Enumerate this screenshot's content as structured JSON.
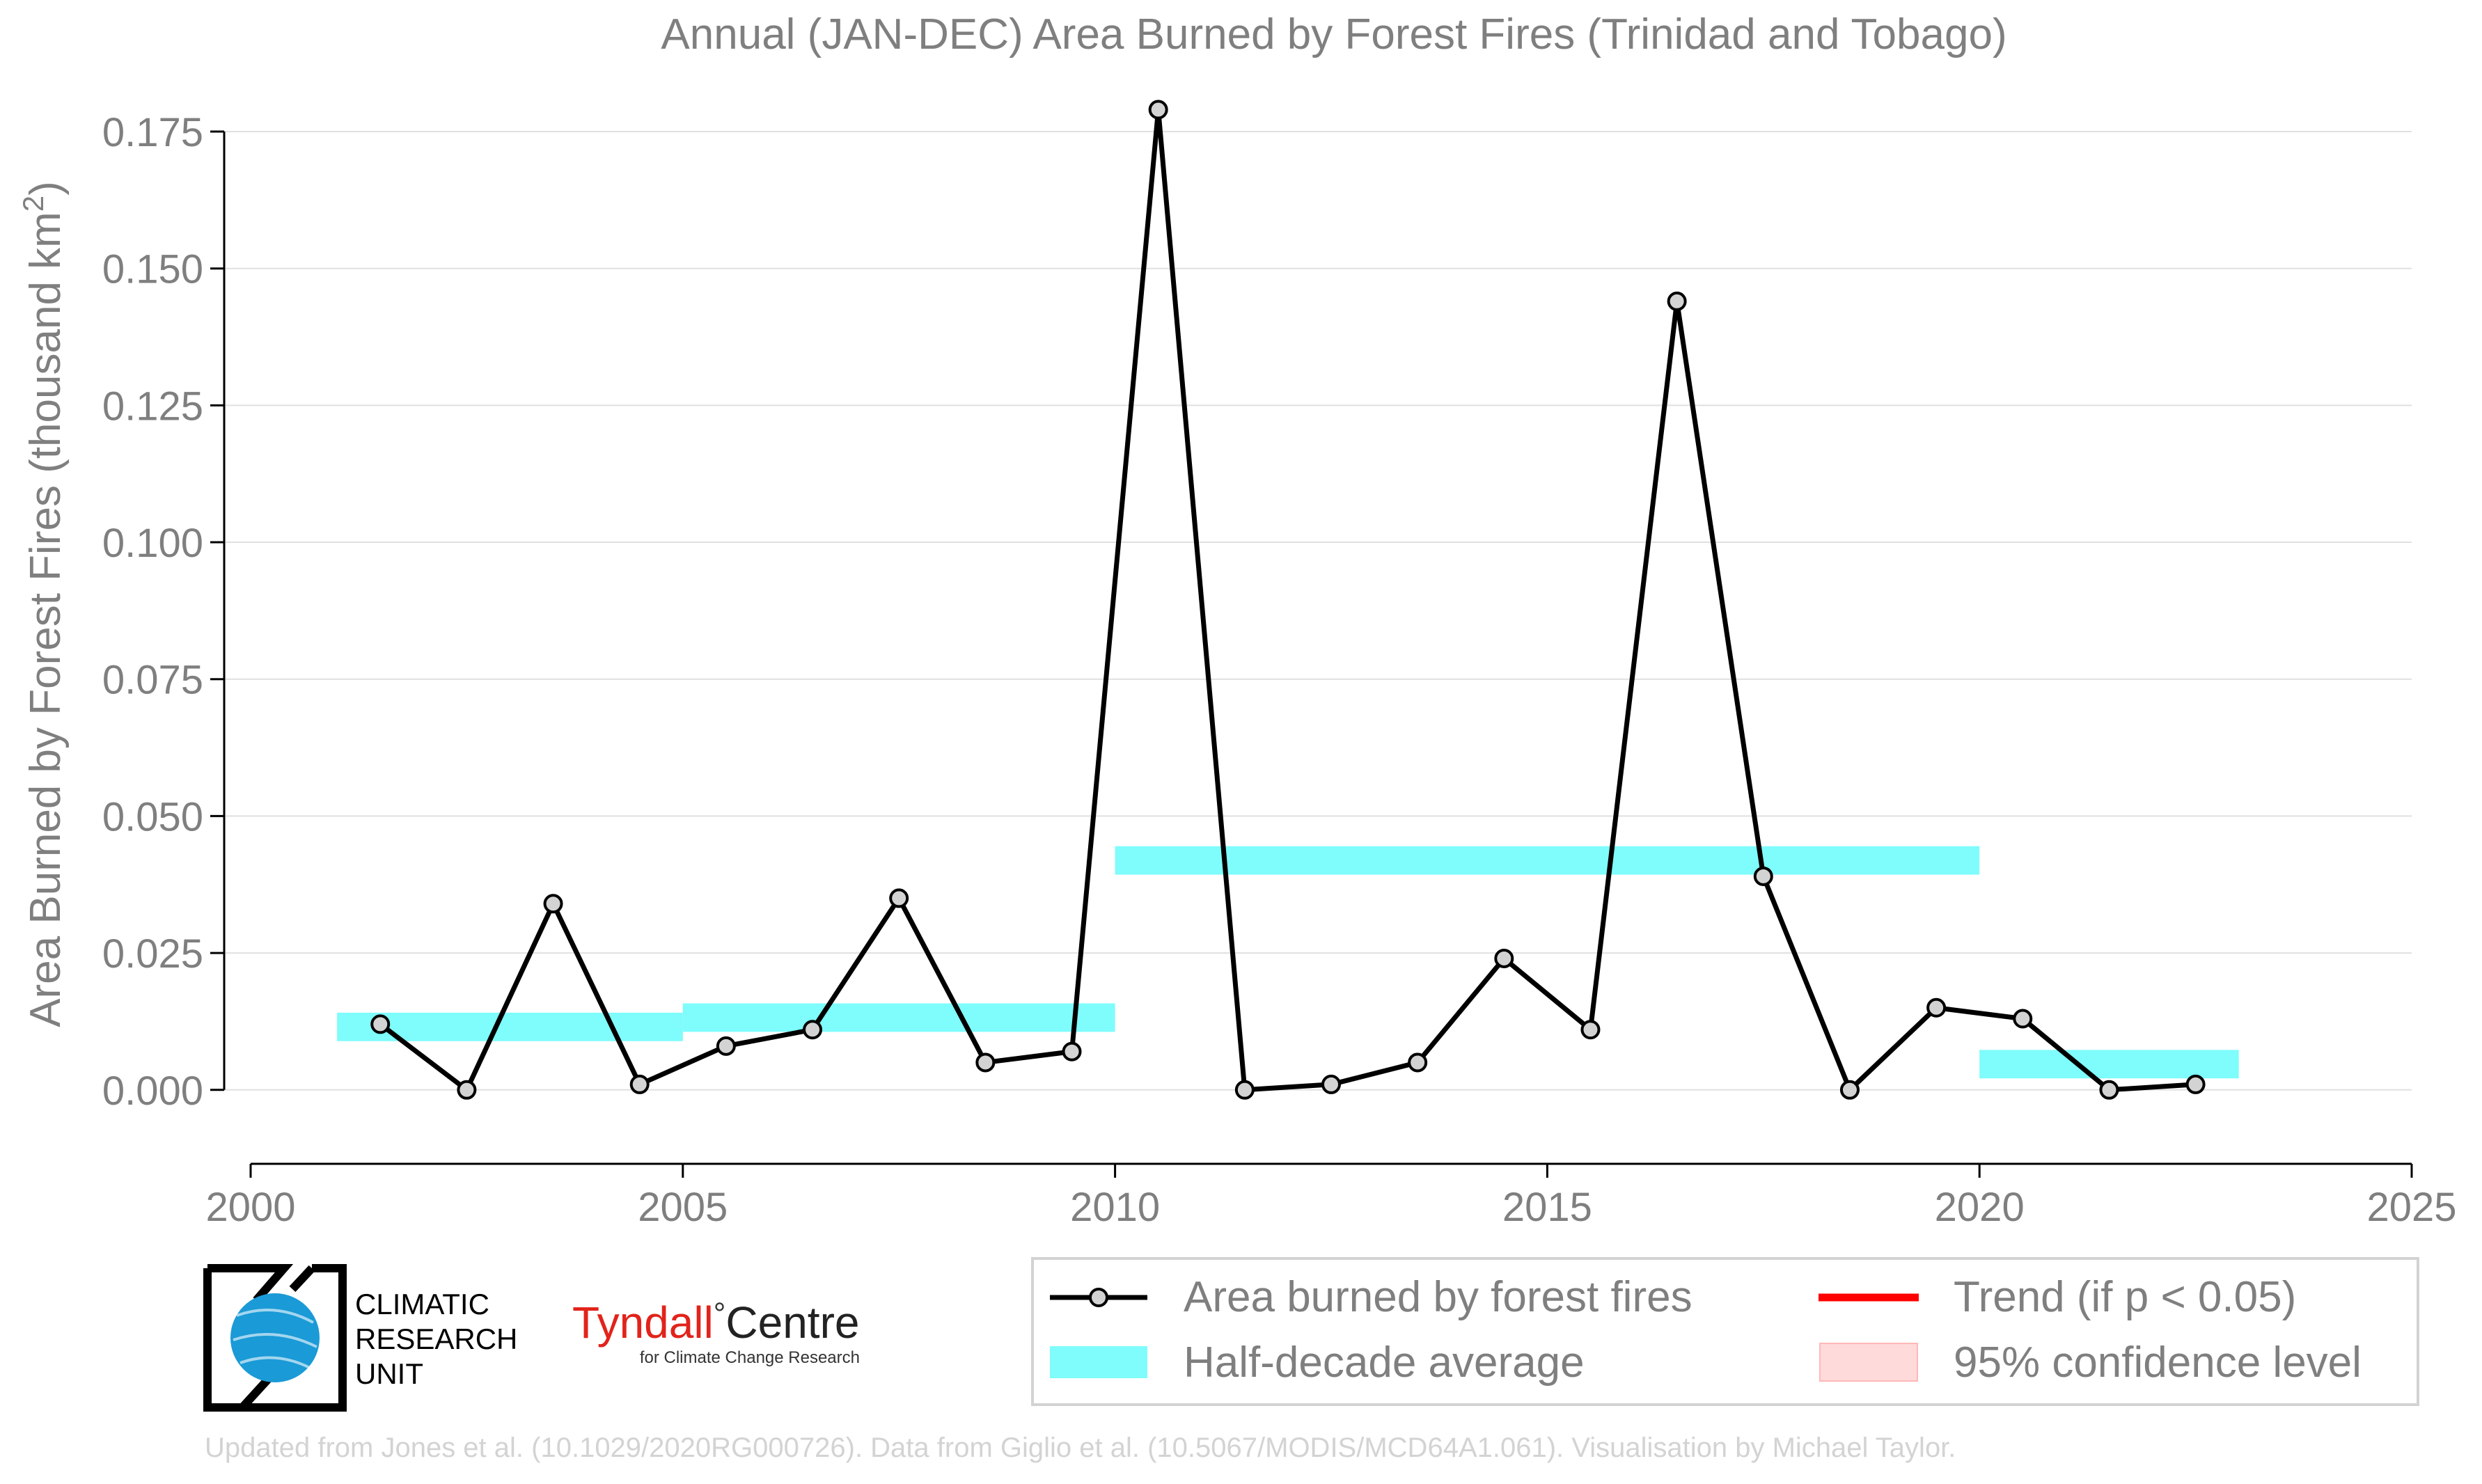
{
  "chart_data": {
    "type": "line",
    "title": "Annual (JAN-DEC) Area Burned by Forest Fires (Trinidad and Tobago)",
    "ylabel_main": "Area Burned by Forest Fires (thousand km",
    "ylabel_sup": "2",
    "ylabel_end": ")",
    "xlabel": "",
    "xlim": [
      2000,
      2025
    ],
    "ylim": [
      -0.0135,
      0.1825
    ],
    "xticks": [
      2000,
      2005,
      2010,
      2015,
      2020,
      2025
    ],
    "xtick_labels": [
      "2000",
      "2005",
      "2010",
      "2015",
      "2020",
      "2025"
    ],
    "yticks": [
      0.0,
      0.025,
      0.05,
      0.075,
      0.1,
      0.125,
      0.15,
      0.175
    ],
    "ytick_labels": [
      "0.000",
      "0.025",
      "0.050",
      "0.075",
      "0.100",
      "0.125",
      "0.150",
      "0.175"
    ],
    "grid": "horizontal",
    "legend_position": "bottom-right",
    "series": [
      {
        "name": "Area burned by forest fires",
        "color": "#000000",
        "marker_fill": "#d3d3d3",
        "x": [
          2001.5,
          2002.5,
          2003.5,
          2004.5,
          2005.5,
          2006.5,
          2007.5,
          2008.5,
          2009.5,
          2010.5,
          2011.5,
          2012.5,
          2013.5,
          2014.5,
          2015.5,
          2016.5,
          2017.5,
          2018.5,
          2019.5,
          2020.5,
          2021.5,
          2022.5
        ],
        "y": [
          0.012,
          0.0,
          0.034,
          0.001,
          0.008,
          0.011,
          0.035,
          0.005,
          0.007,
          0.179,
          0.0,
          0.001,
          0.005,
          0.024,
          0.011,
          0.144,
          0.039,
          0.0,
          0.015,
          0.013,
          0.0,
          0.001
        ]
      }
    ],
    "half_decade_average": {
      "name": "Half-decade average",
      "color": "#7ffcfc",
      "segments": [
        {
          "x_start": 2001,
          "x_end": 2005,
          "y": 0.0115
        },
        {
          "x_start": 2005,
          "x_end": 2010,
          "y": 0.0132
        },
        {
          "x_start": 2010,
          "x_end": 2020,
          "y": 0.0419
        },
        {
          "x_start": 2020,
          "x_end": 2023,
          "y": 0.0047
        }
      ]
    },
    "legend": [
      {
        "label": "Area burned by forest fires",
        "kind": "line-marker",
        "color": "#000000"
      },
      {
        "label": "Trend (if p < 0.05)",
        "kind": "line",
        "color": "#ff0000"
      },
      {
        "label": "Half-decade average",
        "kind": "band",
        "color": "#7ffcfc"
      },
      {
        "label": "95% confidence level",
        "kind": "patch",
        "color": "#ffdada"
      }
    ]
  },
  "logos": {
    "cru_lines": [
      "CLIMATIC",
      "RESEARCH",
      "UNIT"
    ],
    "tyndall_name": "Tyndall",
    "tyndall_degree": "°",
    "tyndall_centre": "Centre",
    "tyndall_sub": "for Climate Change Research"
  },
  "footer": {
    "credit": "Updated from Jones et al. (10.1029/2020RG000726). Data from Giglio et al. (10.5067/MODIS/MCD64A1.061). Visualisation by Michael Taylor."
  },
  "colors": {
    "text_gray": "#7f7f7f",
    "grid": "#e0e0e0",
    "axis": "#000000",
    "tyndall_red": "#e2231a",
    "cru_blue": "#1a9ad6"
  }
}
